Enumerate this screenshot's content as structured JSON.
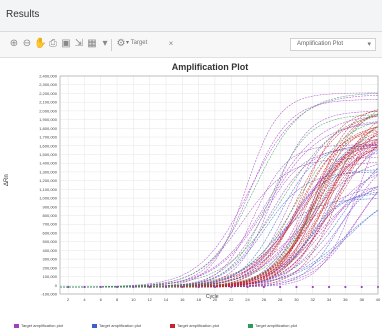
{
  "window": {
    "title": "Results"
  },
  "toolbar": {
    "target_label": "▾ Target",
    "plot_type": "Amplification Plot"
  },
  "chart_data": {
    "type": "line",
    "title": "Amplification Plot",
    "xlabel": "Cycle",
    "ylabel": "ΔRn",
    "ylim": [
      -100000,
      2400000
    ],
    "xlim": [
      1,
      40
    ],
    "grid": true,
    "y_ticks": [
      "2,400,000",
      "2,300,000",
      "2,200,000",
      "2,100,000",
      "2,000,000",
      "1,900,000",
      "1,800,000",
      "1,700,000",
      "1,600,000",
      "1,500,000",
      "1,400,000",
      "1,300,000",
      "1,200,000",
      "1,100,000",
      "1,000,000",
      "900,000",
      "800,000",
      "700,000",
      "600,000",
      "500,000",
      "400,000",
      "300,000",
      "200,000",
      "100,000",
      "0",
      "-100,000"
    ],
    "x_ticks": [
      "2",
      "4",
      "6",
      "8",
      "10",
      "12",
      "14",
      "16",
      "18",
      "20",
      "22",
      "24",
      "26",
      "28",
      "30",
      "32",
      "34",
      "36",
      "38",
      "40"
    ],
    "series_groups": [
      {
        "color": "#a13fc4",
        "count": 28,
        "ct_range": [
          19,
          34
        ],
        "plateau_range": [
          1100000,
          2300000
        ]
      },
      {
        "color": "#3b5fcf",
        "count": 12,
        "ct_range": [
          22,
          34
        ],
        "plateau_range": [
          1000000,
          1900000
        ]
      },
      {
        "color": "#c4262b",
        "count": 26,
        "ct_range": [
          26,
          31
        ],
        "plateau_range": [
          1700000,
          2100000
        ]
      },
      {
        "color": "#2f9a5a",
        "count": 6,
        "ct_range": [
          18,
          30
        ],
        "plateau_range": [
          1900000,
          2350000
        ]
      }
    ],
    "legend": [
      {
        "label": "Target amplification plot",
        "color": "#a13fc4"
      },
      {
        "label": "Target amplification plot",
        "color": "#3b5fcf"
      },
      {
        "label": "Target amplification plot",
        "color": "#c4262b"
      },
      {
        "label": "Target amplification plot",
        "color": "#2f9a5a"
      }
    ]
  }
}
